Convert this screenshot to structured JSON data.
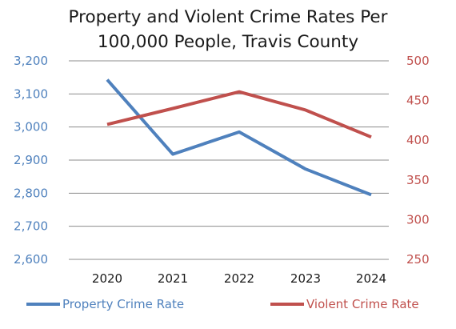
{
  "chart_data": {
    "type": "line",
    "title_lines": [
      "Property and Violent Crime Rates Per",
      "100,000 People, Travis County"
    ],
    "categories": [
      "2020",
      "2021",
      "2022",
      "2023",
      "2024"
    ],
    "y_left": {
      "ylim": [
        2600,
        3200
      ],
      "ticks": [
        2600,
        2700,
        2800,
        2900,
        3000,
        3100,
        3200
      ],
      "tick_labels": [
        "2,600",
        "2,700",
        "2,800",
        "2,900",
        "3,000",
        "3,100",
        "3,200"
      ],
      "color": "#4f81bd"
    },
    "y_right": {
      "ylim": [
        250,
        500
      ],
      "ticks": [
        250,
        300,
        350,
        400,
        450,
        500
      ],
      "tick_labels": [
        "250",
        "300",
        "350",
        "400",
        "450",
        "500"
      ],
      "color": "#c0504d"
    },
    "grid": true,
    "legend_position": "bottom",
    "series": [
      {
        "name": "Property Crime Rate",
        "axis": "left",
        "color": "#4f81bd",
        "values": [
          3143,
          2918,
          2985,
          2873,
          2795
        ]
      },
      {
        "name": "Violent Crime Rate",
        "axis": "right",
        "color": "#c0504d",
        "values": [
          420,
          440,
          461,
          438,
          404
        ]
      }
    ]
  }
}
